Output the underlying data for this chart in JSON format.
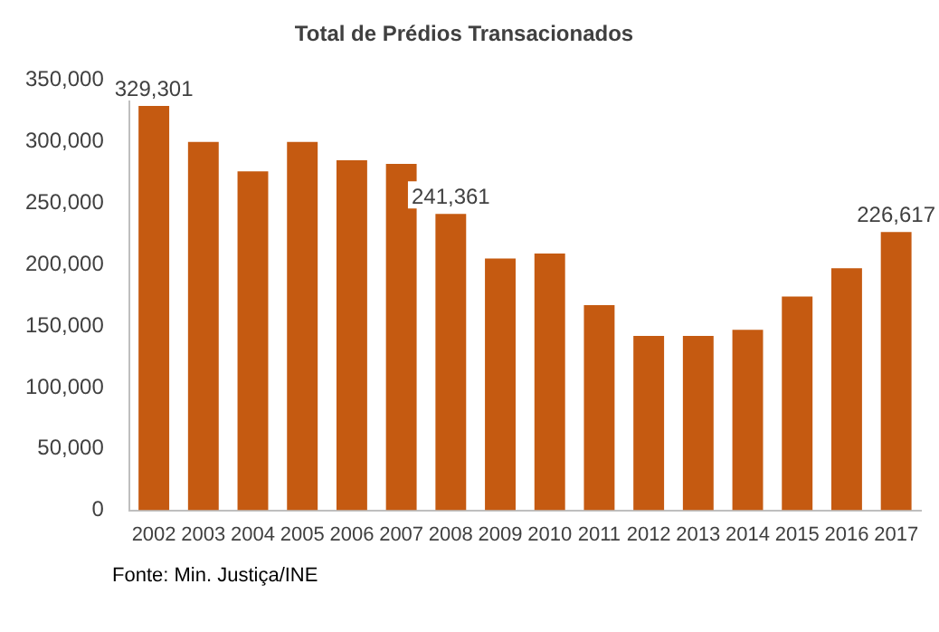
{
  "chart_data": {
    "type": "bar",
    "title": "Total de Prédios Transacionados",
    "categories": [
      "2002",
      "2003",
      "2004",
      "2005",
      "2006",
      "2007",
      "2008",
      "2009",
      "2010",
      "2011",
      "2012",
      "2013",
      "2014",
      "2015",
      "2016",
      "2017"
    ],
    "values": [
      329301,
      300000,
      276000,
      300000,
      285000,
      282000,
      241361,
      205000,
      209000,
      167000,
      142000,
      142000,
      147000,
      174000,
      197000,
      226617
    ],
    "value_labels": [
      "329,301",
      null,
      null,
      null,
      null,
      null,
      "241,361",
      null,
      null,
      null,
      null,
      null,
      null,
      null,
      null,
      "226,617"
    ],
    "color": "#c55a11",
    "ylim": [
      0,
      350000
    ],
    "yticks": [
      {
        "value": 0,
        "label": "0"
      },
      {
        "value": 50000,
        "label": "50,000"
      },
      {
        "value": 100000,
        "label": "100,000"
      },
      {
        "value": 150000,
        "label": "150,000"
      },
      {
        "value": 200000,
        "label": "200,000"
      },
      {
        "value": 250000,
        "label": "250,000"
      },
      {
        "value": 300000,
        "label": "300,000"
      },
      {
        "value": 350000,
        "label": "350,000"
      }
    ],
    "grid": false,
    "legend": false,
    "annotations": [
      "Fonte: Min. Justiça/INE"
    ]
  }
}
